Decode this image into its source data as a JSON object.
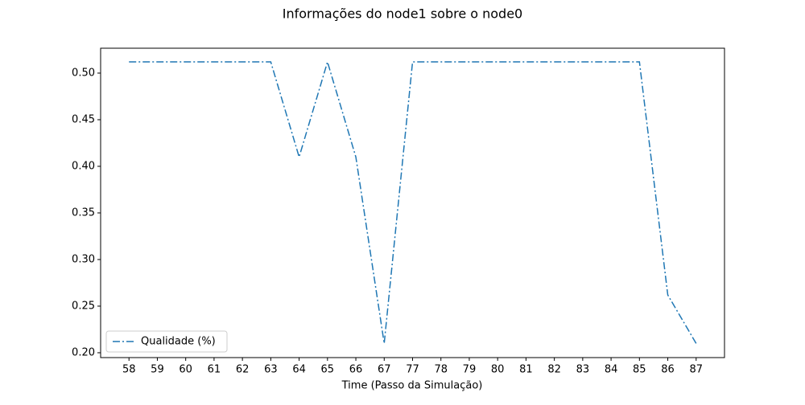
{
  "chart_data": {
    "type": "line",
    "title": "Informações do node1 sobre o node0",
    "xlabel": "Time (Passo da Simulação)",
    "categories": [
      "58",
      "59",
      "60",
      "61",
      "62",
      "63",
      "64",
      "65",
      "66",
      "67",
      "77",
      "78",
      "79",
      "80",
      "81",
      "82",
      "83",
      "84",
      "85",
      "86",
      "87"
    ],
    "series": [
      {
        "name": "Qualidade (%)",
        "color": "#1f77b4",
        "values": [
          0.512,
          0.512,
          0.512,
          0.512,
          0.512,
          0.512,
          0.41,
          0.512,
          0.41,
          0.21,
          0.512,
          0.512,
          0.512,
          0.512,
          0.512,
          0.512,
          0.512,
          0.512,
          0.512,
          0.262,
          0.21
        ]
      }
    ],
    "ylim": [
      0.1948,
      0.5267
    ],
    "yticks": [
      {
        "value": 0.2,
        "label": "0.20"
      },
      {
        "value": 0.25,
        "label": "0.25"
      },
      {
        "value": 0.3,
        "label": "0.30"
      },
      {
        "value": 0.35,
        "label": "0.35"
      },
      {
        "value": 0.4,
        "label": "0.40"
      },
      {
        "value": 0.45,
        "label": "0.45"
      },
      {
        "value": 0.5,
        "label": "0.50"
      }
    ],
    "legend": "lower left",
    "grid": false
  }
}
